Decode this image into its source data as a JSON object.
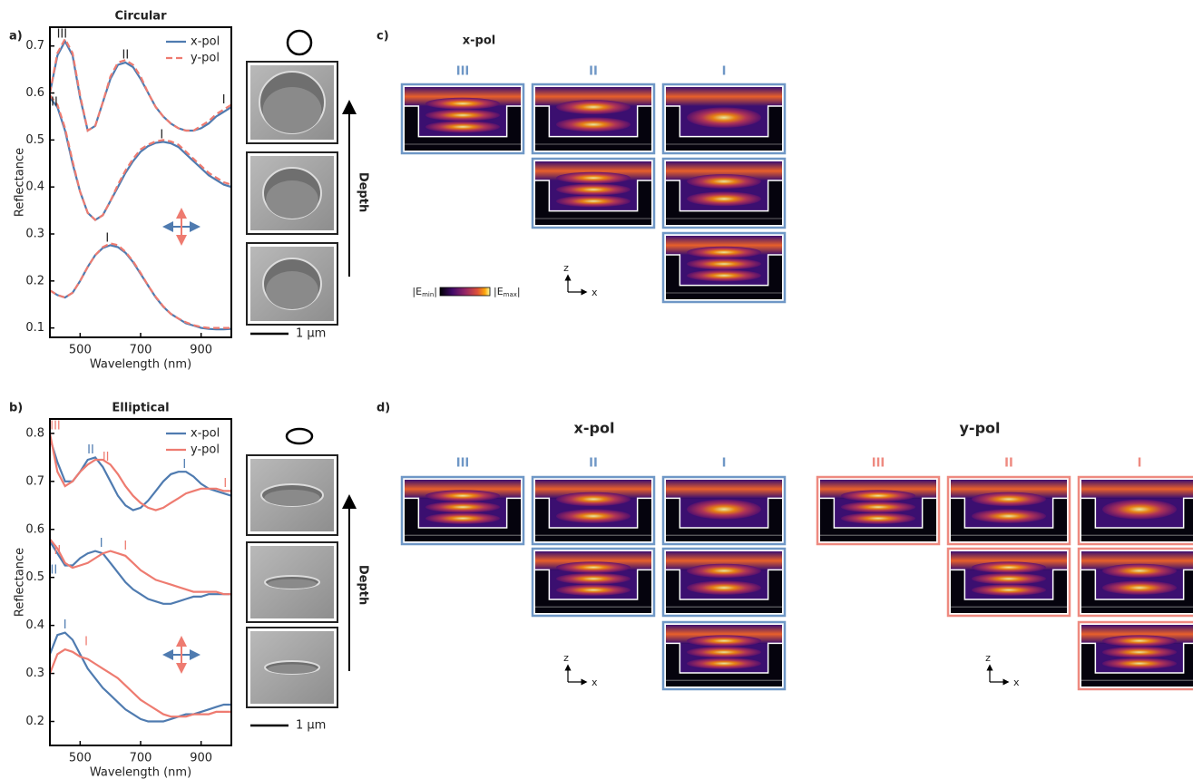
{
  "panels": {
    "a": "a)",
    "b": "b)",
    "c": "c)",
    "d": "d)"
  },
  "chart_data": [
    {
      "type": "line",
      "title": "Circular",
      "x_label": "Wavelength (nm)",
      "y_label": "Reflectance",
      "x": [
        400,
        425,
        450,
        475,
        500,
        525,
        550,
        575,
        600,
        625,
        650,
        675,
        700,
        725,
        750,
        775,
        800,
        825,
        850,
        875,
        900,
        925,
        950,
        975,
        1000
      ],
      "xlim": [
        400,
        1000
      ],
      "xticks": [
        500,
        700,
        900
      ],
      "ylim": [
        0.08,
        0.74
      ],
      "yticks": [
        0.1,
        0.2,
        0.3,
        0.4,
        0.5,
        0.6,
        0.7
      ],
      "legend": "upper right",
      "series": [
        {
          "name": "x-pol",
          "color": "#4f7bb0",
          "dashed": false,
          "values": [
            [
              0.6,
              0.68,
              0.71,
              0.68,
              0.59,
              0.52,
              0.53,
              0.58,
              0.63,
              0.66,
              0.665,
              0.655,
              0.63,
              0.6,
              0.57,
              0.55,
              0.535,
              0.525,
              0.52,
              0.52,
              0.525,
              0.535,
              0.55,
              0.56,
              0.57
            ],
            [
              0.59,
              0.57,
              0.52,
              0.45,
              0.39,
              0.345,
              0.33,
              0.34,
              0.37,
              0.4,
              0.43,
              0.455,
              0.475,
              0.487,
              0.494,
              0.496,
              0.493,
              0.485,
              0.47,
              0.455,
              0.44,
              0.425,
              0.415,
              0.405,
              0.4
            ],
            [
              0.18,
              0.17,
              0.165,
              0.175,
              0.2,
              0.23,
              0.255,
              0.27,
              0.276,
              0.272,
              0.26,
              0.24,
              0.215,
              0.19,
              0.165,
              0.145,
              0.13,
              0.12,
              0.11,
              0.105,
              0.1,
              0.098,
              0.097,
              0.097,
              0.098
            ]
          ]
        },
        {
          "name": "y-pol",
          "color": "#ee7b70",
          "dashed": true,
          "values": [
            [
              0.6,
              0.685,
              0.715,
              0.685,
              0.595,
              0.52,
              0.53,
              0.58,
              0.635,
              0.665,
              0.67,
              0.66,
              0.635,
              0.6,
              0.57,
              0.55,
              0.535,
              0.525,
              0.52,
              0.52,
              0.53,
              0.54,
              0.555,
              0.565,
              0.575
            ],
            [
              0.595,
              0.575,
              0.525,
              0.455,
              0.39,
              0.345,
              0.33,
              0.34,
              0.37,
              0.405,
              0.435,
              0.46,
              0.48,
              0.49,
              0.497,
              0.5,
              0.497,
              0.49,
              0.475,
              0.46,
              0.445,
              0.43,
              0.42,
              0.41,
              0.405
            ],
            [
              0.18,
              0.17,
              0.165,
              0.175,
              0.2,
              0.23,
              0.255,
              0.272,
              0.28,
              0.276,
              0.262,
              0.242,
              0.217,
              0.19,
              0.166,
              0.146,
              0.13,
              0.12,
              0.112,
              0.106,
              0.102,
              0.1,
              0.1,
              0.1,
              0.1
            ]
          ]
        }
      ],
      "annotations": [
        {
          "text": "III",
          "x": 440,
          "y": 0.725,
          "color": "#222222"
        },
        {
          "text": "II",
          "x": 650,
          "y": 0.68,
          "color": "#222222"
        },
        {
          "text": "I",
          "x": 975,
          "y": 0.585,
          "color": "#222222"
        },
        {
          "text": "II",
          "x": 415,
          "y": 0.58,
          "color": "#222222"
        },
        {
          "text": "I",
          "x": 770,
          "y": 0.51,
          "color": "#222222"
        },
        {
          "text": "I",
          "x": 590,
          "y": 0.29,
          "color": "#222222"
        }
      ]
    },
    {
      "type": "line",
      "title": "Elliptical",
      "x_label": "Wavelength (nm)",
      "y_label": "Reflectance",
      "x": [
        400,
        425,
        450,
        475,
        500,
        525,
        550,
        575,
        600,
        625,
        650,
        675,
        700,
        725,
        750,
        775,
        800,
        825,
        850,
        875,
        900,
        925,
        950,
        975,
        1000
      ],
      "xlim": [
        400,
        1000
      ],
      "xticks": [
        500,
        700,
        900
      ],
      "ylim": [
        0.15,
        0.83
      ],
      "yticks": [
        0.2,
        0.3,
        0.4,
        0.5,
        0.6,
        0.7,
        0.8
      ],
      "legend": "upper right",
      "series": [
        {
          "name": "x-pol",
          "color": "#4f7bb0",
          "dashed": false,
          "values": [
            [
              0.79,
              0.74,
              0.7,
              0.7,
              0.72,
              0.745,
              0.75,
              0.73,
              0.7,
              0.67,
              0.65,
              0.64,
              0.645,
              0.66,
              0.68,
              0.7,
              0.715,
              0.72,
              0.72,
              0.71,
              0.695,
              0.685,
              0.68,
              0.675,
              0.67
            ],
            [
              0.575,
              0.55,
              0.525,
              0.525,
              0.54,
              0.55,
              0.555,
              0.55,
              0.53,
              0.51,
              0.49,
              0.475,
              0.465,
              0.455,
              0.45,
              0.445,
              0.445,
              0.45,
              0.455,
              0.46,
              0.46,
              0.465,
              0.465,
              0.465,
              0.465
            ],
            [
              0.34,
              0.38,
              0.385,
              0.37,
              0.34,
              0.31,
              0.29,
              0.27,
              0.255,
              0.24,
              0.225,
              0.215,
              0.205,
              0.2,
              0.2,
              0.2,
              0.205,
              0.21,
              0.215,
              0.215,
              0.22,
              0.225,
              0.23,
              0.235,
              0.235
            ]
          ]
        },
        {
          "name": "y-pol",
          "color": "#ee7b70",
          "dashed": false,
          "values": [
            [
              0.8,
              0.72,
              0.69,
              0.7,
              0.72,
              0.735,
              0.745,
              0.745,
              0.735,
              0.715,
              0.69,
              0.67,
              0.655,
              0.645,
              0.64,
              0.645,
              0.655,
              0.665,
              0.675,
              0.68,
              0.685,
              0.685,
              0.685,
              0.68,
              0.68
            ],
            [
              0.58,
              0.56,
              0.53,
              0.52,
              0.525,
              0.53,
              0.54,
              0.55,
              0.555,
              0.55,
              0.545,
              0.53,
              0.515,
              0.505,
              0.495,
              0.49,
              0.485,
              0.48,
              0.475,
              0.47,
              0.47,
              0.47,
              0.47,
              0.465,
              0.465
            ],
            [
              0.3,
              0.34,
              0.35,
              0.345,
              0.335,
              0.33,
              0.32,
              0.31,
              0.3,
              0.29,
              0.275,
              0.26,
              0.245,
              0.235,
              0.225,
              0.215,
              0.21,
              0.21,
              0.21,
              0.215,
              0.215,
              0.215,
              0.22,
              0.22,
              0.22
            ]
          ]
        }
      ],
      "annotations": [
        {
          "text": "III",
          "x": 418,
          "y": 0.815,
          "color": "#ee7b70"
        },
        {
          "text": "II",
          "x": 535,
          "y": 0.765,
          "color": "#4f7bb0"
        },
        {
          "text": "II",
          "x": 585,
          "y": 0.75,
          "color": "#ee7b70"
        },
        {
          "text": "I",
          "x": 845,
          "y": 0.735,
          "color": "#4f7bb0"
        },
        {
          "text": "I",
          "x": 980,
          "y": 0.695,
          "color": "#ee7b70"
        },
        {
          "text": "II",
          "x": 425,
          "y": 0.555,
          "color": "#ee7b70"
        },
        {
          "text": "II",
          "x": 413,
          "y": 0.515,
          "color": "#4f7bb0"
        },
        {
          "text": "I",
          "x": 570,
          "y": 0.57,
          "color": "#4f7bb0"
        },
        {
          "text": "I",
          "x": 650,
          "y": 0.565,
          "color": "#ee7b70"
        },
        {
          "text": "I",
          "x": 450,
          "y": 0.4,
          "color": "#4f7bb0"
        },
        {
          "text": "I",
          "x": 520,
          "y": 0.365,
          "color": "#ee7b70"
        }
      ]
    }
  ],
  "sem": {
    "depth": "Depth",
    "scale": "1 µm"
  },
  "field_maps": {
    "c": [
      {
        "title": "x-pol",
        "color": "#6f97c6",
        "modes": [
          "III",
          "II",
          "I"
        ]
      }
    ],
    "d": [
      {
        "title": "x-pol",
        "color": "#6f97c6",
        "modes": [
          "III",
          "II",
          "I"
        ]
      },
      {
        "title": "y-pol",
        "color": "#ee8a80",
        "modes": [
          "III",
          "II",
          "I"
        ]
      }
    ],
    "colorbar": {
      "left": [
        "|E",
        "min",
        "|"
      ],
      "right": [
        "|E",
        "max",
        "|"
      ]
    },
    "axis_labels": [
      "z",
      "x"
    ]
  }
}
